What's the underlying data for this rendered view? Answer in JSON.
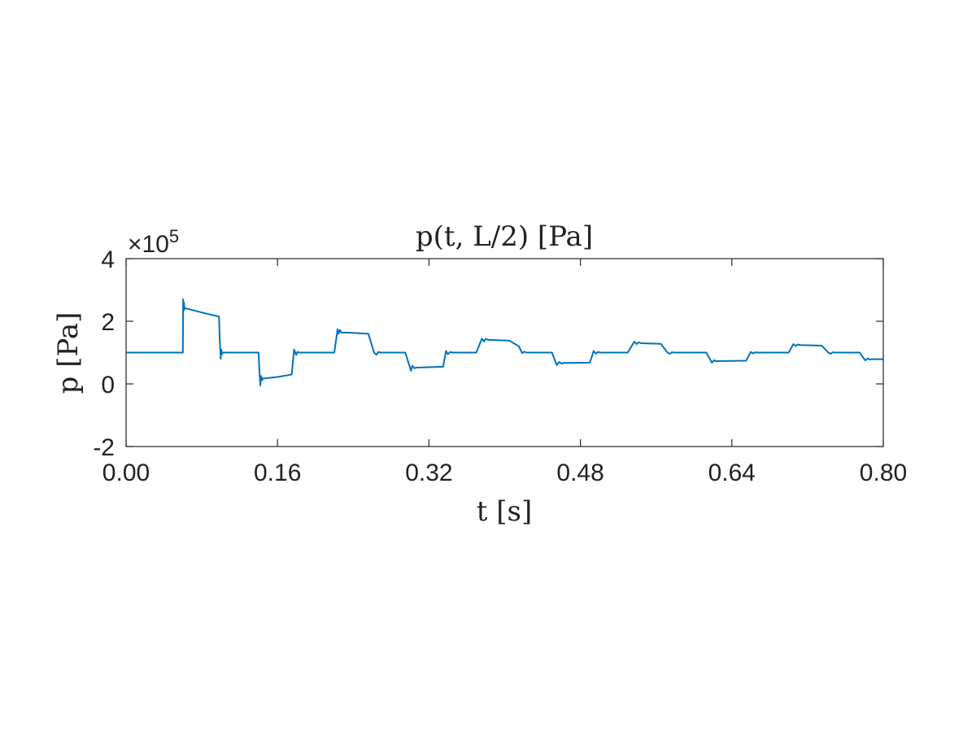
{
  "chart_data": {
    "type": "line",
    "title": "p(t, L/2) [Pa]",
    "xlabel": "t [s]",
    "ylabel": "p [Pa]",
    "y_multiplier": {
      "prefix": "×10",
      "exponent": "5"
    },
    "xlim": [
      0,
      0.8
    ],
    "ylim": [
      -2,
      4
    ],
    "x_ticks": [
      0,
      0.16,
      0.32,
      0.48,
      0.64,
      0.8
    ],
    "x_tick_labels": [
      "0.00",
      "0.16",
      "0.32",
      "0.48",
      "0.64",
      "0.80"
    ],
    "y_ticks": [
      -2,
      0,
      2,
      4
    ],
    "y_tick_labels": [
      "-2",
      "0",
      "2",
      "4"
    ],
    "grid": false,
    "line_color": "#0072BD",
    "series": [
      {
        "x": [
          0,
          0.06,
          0.0603,
          0.0608,
          0.0612,
          0.0617,
          0.0623,
          0.08,
          0.0982,
          0.099,
          0.1,
          0.1006,
          0.1014,
          0.1025,
          0.14,
          0.1408,
          0.1418,
          0.1428,
          0.1438,
          0.1445,
          0.16,
          0.175,
          0.1775,
          0.1797,
          0.181,
          0.1826,
          0.22,
          0.2235,
          0.2245,
          0.226,
          0.2275,
          0.24,
          0.256,
          0.262,
          0.2645,
          0.2665,
          0.2685,
          0.295,
          0.301,
          0.3025,
          0.3045,
          0.3065,
          0.335,
          0.338,
          0.34,
          0.3425,
          0.3445,
          0.37,
          0.376,
          0.3782,
          0.38,
          0.3822,
          0.405,
          0.415,
          0.4185,
          0.4205,
          0.423,
          0.45,
          0.455,
          0.4575,
          0.46,
          0.4625,
          0.49,
          0.494,
          0.4965,
          0.4985,
          0.501,
          0.53,
          0.537,
          0.5395,
          0.5415,
          0.544,
          0.565,
          0.572,
          0.5745,
          0.5765,
          0.579,
          0.613,
          0.619,
          0.6215,
          0.6235,
          0.626,
          0.655,
          0.66,
          0.6625,
          0.6645,
          0.667,
          0.7,
          0.705,
          0.7075,
          0.7095,
          0.712,
          0.735,
          0.742,
          0.7445,
          0.7465,
          0.749,
          0.775,
          0.781,
          0.7835,
          0.7855,
          0.788,
          0.8
        ],
        "y": [
          1.0,
          1.0,
          2.7,
          2.35,
          2.6,
          2.38,
          2.42,
          2.28,
          2.15,
          1.4,
          0.8,
          1.1,
          0.95,
          1.0,
          1.0,
          0.45,
          -0.05,
          0.25,
          0.12,
          0.17,
          0.22,
          0.3,
          1.1,
          0.92,
          1.02,
          1.0,
          1.0,
          1.75,
          1.6,
          1.72,
          1.64,
          1.63,
          1.6,
          1.0,
          0.93,
          1.02,
          1.0,
          1.0,
          0.42,
          0.58,
          0.5,
          0.52,
          0.55,
          1.05,
          0.95,
          1.02,
          1.0,
          1.0,
          1.45,
          1.35,
          1.44,
          1.41,
          1.38,
          1.2,
          0.98,
          1.03,
          1.0,
          1.0,
          0.6,
          0.7,
          0.65,
          0.67,
          0.68,
          1.05,
          0.96,
          1.02,
          1.0,
          1.0,
          1.35,
          1.27,
          1.33,
          1.3,
          1.28,
          1.0,
          0.96,
          1.01,
          1.0,
          1.0,
          0.68,
          0.76,
          0.72,
          0.73,
          0.74,
          1.02,
          0.97,
          1.01,
          1.0,
          1.0,
          1.27,
          1.21,
          1.26,
          1.24,
          1.22,
          1.0,
          0.96,
          1.01,
          1.0,
          1.0,
          0.75,
          0.81,
          0.78,
          0.79,
          0.79
        ]
      }
    ]
  }
}
